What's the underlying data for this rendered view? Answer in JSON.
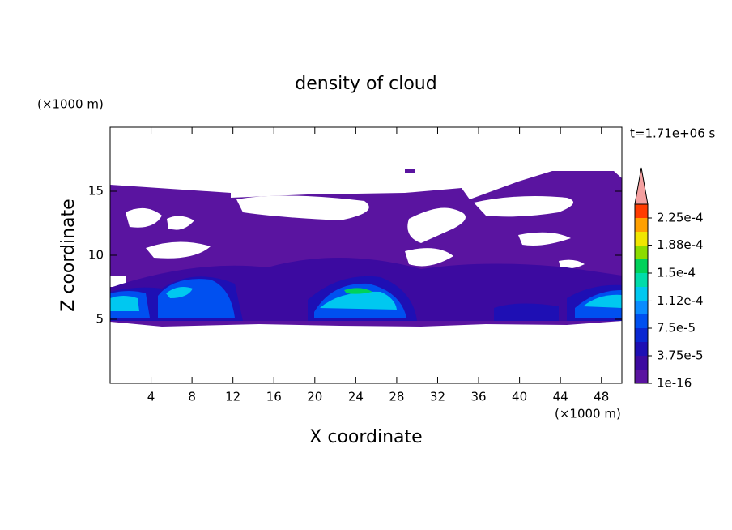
{
  "chart_data": {
    "type": "contour",
    "title": "density of cloud",
    "x_label": "X coordinate",
    "y_label": "Z coordinate",
    "x_unit": "(×1000 m)",
    "y_unit": "(×1000 m)",
    "time_label": "t=1.71e+06 s",
    "xlim": [
      0,
      50
    ],
    "xticks": [
      4,
      8,
      12,
      16,
      20,
      24,
      28,
      32,
      36,
      40,
      44,
      48
    ],
    "ylim": [
      0,
      20
    ],
    "yticks": [
      5,
      10,
      15
    ],
    "colorbar": {
      "clim": [
        0,
        0.00024375
      ],
      "colors": [
        "#5a14a0",
        "#3c0aa0",
        "#1e0fb4",
        "#0a28d2",
        "#0050f0",
        "#0a8cff",
        "#00c8f0",
        "#00dcaa",
        "#00d25a",
        "#8cdc00",
        "#f0e600",
        "#ffa000",
        "#ff3c00"
      ],
      "over_color": "#f4a0a0",
      "ticks": [
        {
          "value": 1e-16,
          "label": "1e-16"
        },
        {
          "value": 3.75e-05,
          "label": "3.75e-5"
        },
        {
          "value": 7.5e-05,
          "label": "7.5e-5"
        },
        {
          "value": 0.000112,
          "label": "1.12e-4"
        },
        {
          "value": 0.00015,
          "label": "1.5e-4"
        },
        {
          "value": 0.000188,
          "label": "1.88e-4"
        },
        {
          "value": 0.000225,
          "label": "2.25e-4"
        }
      ]
    }
  }
}
